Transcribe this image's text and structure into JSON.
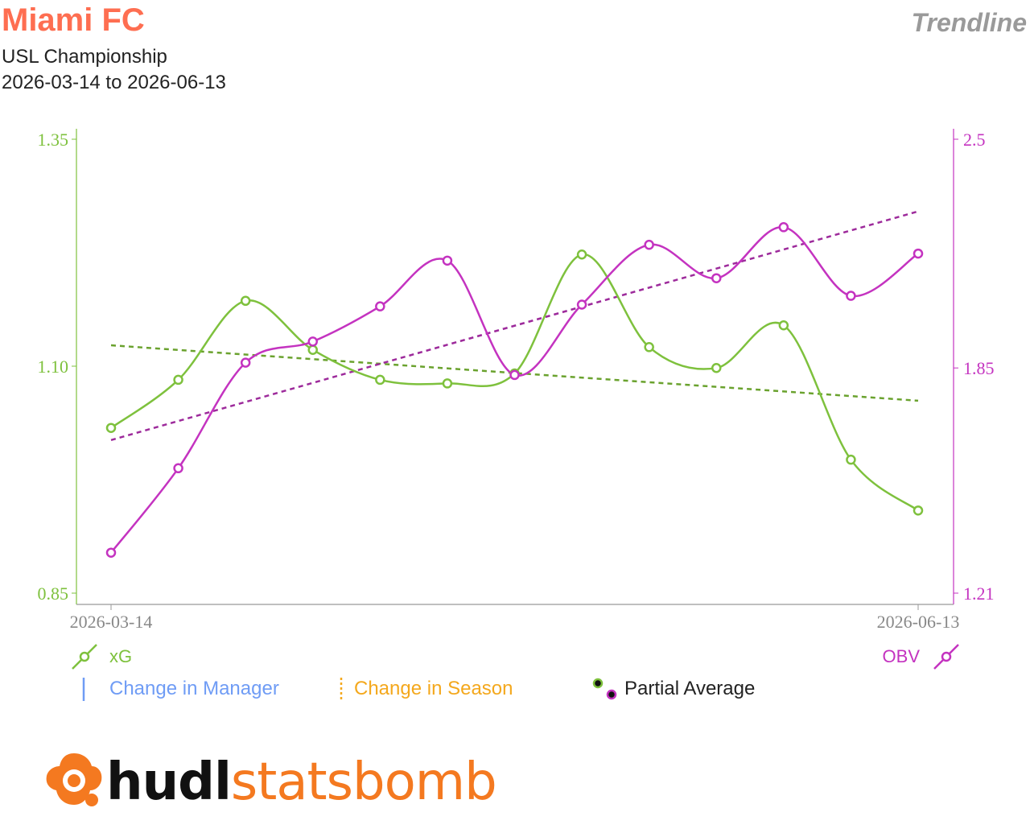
{
  "header": {
    "team": "Miami FC",
    "competition": "USL Championship",
    "date_range": "2026-03-14 to 2026-06-13",
    "chart_kind": "Trendline"
  },
  "legend": {
    "left_series": "xG",
    "right_series": "OBV",
    "manager_change": "Change in Manager",
    "season_change": "Change in Season",
    "partial_average": "Partial Average"
  },
  "brand": {
    "part1": "hudl",
    "part2": "statsbomb"
  },
  "colors": {
    "xg": "#7ec13d",
    "obv": "#c433c0",
    "xg_trend": "#6aa22e",
    "obv_trend": "#9d2a9b",
    "manager": "#6f9cf5",
    "season": "#f4a81d",
    "title": "#fe6e51"
  },
  "chart_data": {
    "type": "line",
    "x_labels": [
      "2026-03-14",
      "2026-06-13"
    ],
    "y_left": {
      "ticks": [
        1.35,
        1.1,
        0.85
      ],
      "tick_labels": [
        "1.35",
        "1.10",
        "0.85"
      ],
      "range": [
        0.835,
        1.35
      ]
    },
    "y_right": {
      "ticks": [
        2.5,
        1.85,
        1.21
      ],
      "tick_labels": [
        "2.5",
        "1.85",
        "1.21"
      ],
      "range": [
        1.18,
        2.5
      ]
    },
    "series": [
      {
        "name": "xG",
        "axis": "left",
        "values": [
          1.032,
          1.085,
          1.172,
          1.118,
          1.085,
          1.081,
          1.092,
          1.223,
          1.121,
          1.098,
          1.145,
          0.997,
          0.941
        ],
        "trend": [
          1.123,
          1.062
        ]
      },
      {
        "name": "OBV",
        "axis": "right",
        "values": [
          1.325,
          1.565,
          1.865,
          1.925,
          2.025,
          2.155,
          1.83,
          2.03,
          2.2,
          2.105,
          2.25,
          2.055,
          2.175
        ],
        "trend": [
          1.645,
          2.295
        ]
      }
    ]
  }
}
